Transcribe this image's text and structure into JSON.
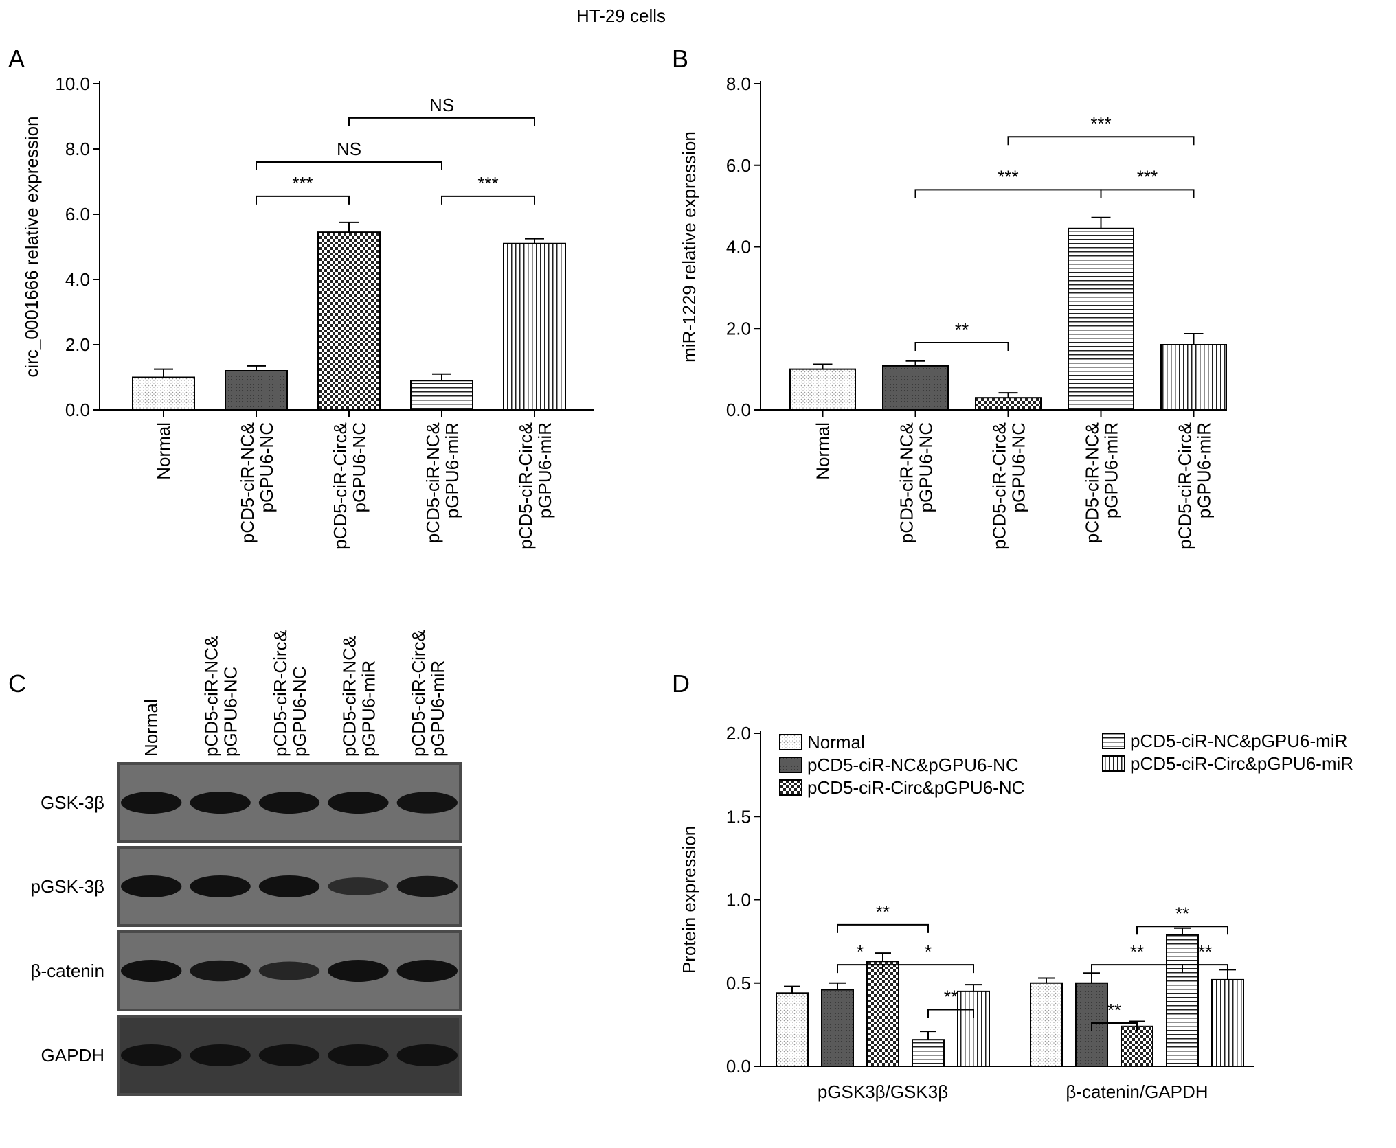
{
  "figure_title": "HT-29 cells",
  "colors": {
    "bar_fill": "#ffffff",
    "dark_fill": "#555555",
    "axis": "#000000",
    "blot_bg": "#f2f2f2",
    "blot_band": "#1a1a1a"
  },
  "patterns": [
    "light-dots",
    "dark-fill",
    "checkerboard",
    "horizontal-lines",
    "vertical-lines"
  ],
  "groups": [
    "Normal",
    "pCD5-ciR-NC& pGPU6-NC",
    "pCD5-ciR-Circ& pGPU6-NC",
    "pCD5-ciR-NC& pGPU6-miR",
    "pCD5-ciR-Circ& pGPU6-miR"
  ],
  "chart_data": [
    {
      "panel": "A",
      "type": "bar",
      "categories": [
        "Normal",
        "pCD5-ciR-NC& pGPU6-NC",
        "pCD5-ciR-Circ& pGPU6-NC",
        "pCD5-ciR-NC& pGPU6-miR",
        "pCD5-ciR-Circ& pGPU6-miR"
      ],
      "values": [
        1.0,
        1.2,
        5.45,
        0.9,
        5.1
      ],
      "errors": [
        0.25,
        0.15,
        0.3,
        0.2,
        0.15
      ],
      "ylabel": "circ_0001666 relative expression",
      "ylim": [
        0,
        10
      ],
      "yticks": [
        "0.0",
        "2.0",
        "4.0",
        "6.0",
        "8.0",
        "10.0"
      ],
      "significance": [
        {
          "from": 1,
          "to": 2,
          "label": "***"
        },
        {
          "from": 3,
          "to": 4,
          "label": "***"
        },
        {
          "from": 1,
          "to": 3,
          "label": "NS"
        },
        {
          "from": 2,
          "to": 4,
          "label": "NS"
        }
      ]
    },
    {
      "panel": "B",
      "type": "bar",
      "categories": [
        "Normal",
        "pCD5-ciR-NC& pGPU6-NC",
        "pCD5-ciR-Circ& pGPU6-NC",
        "pCD5-ciR-NC& pGPU6-miR",
        "pCD5-ciR-Circ& pGPU6-miR"
      ],
      "values": [
        1.0,
        1.08,
        0.3,
        4.45,
        1.6
      ],
      "errors": [
        0.12,
        0.12,
        0.12,
        0.27,
        0.27
      ],
      "ylabel": "miR-1229 relative expression",
      "ylim": [
        0,
        8
      ],
      "yticks": [
        "0.0",
        "2.0",
        "4.0",
        "6.0",
        "8.0"
      ],
      "significance": [
        {
          "from": 1,
          "to": 2,
          "label": "**"
        },
        {
          "from": 1,
          "to": 3,
          "label": "***"
        },
        {
          "from": 3,
          "to": 4,
          "label": "***"
        },
        {
          "from": 2,
          "to": 4,
          "label": "***"
        }
      ]
    },
    {
      "panel": "D",
      "type": "bar",
      "categories": [
        "pGSK3β/GSK3β",
        "β-catenin/GAPDH"
      ],
      "series": [
        {
          "name": "Normal",
          "values": [
            0.44,
            0.5
          ],
          "errors": [
            0.04,
            0.03
          ]
        },
        {
          "name": "pCD5-ciR-NC&pGPU6-NC",
          "values": [
            0.46,
            0.5
          ],
          "errors": [
            0.04,
            0.06
          ]
        },
        {
          "name": "pCD5-ciR-Circ&pGPU6-NC",
          "values": [
            0.63,
            0.24
          ],
          "errors": [
            0.05,
            0.03
          ]
        },
        {
          "name": "pCD5-ciR-NC&pGPU6-miR",
          "values": [
            0.16,
            0.79
          ],
          "errors": [
            0.05,
            0.04
          ]
        },
        {
          "name": "pCD5-ciR-Circ&pGPU6-miR",
          "values": [
            0.45,
            0.52
          ],
          "errors": [
            0.04,
            0.06
          ]
        }
      ],
      "ylabel": "Protein expression",
      "ylim": [
        0,
        2
      ],
      "yticks": [
        "0.0",
        "0.5",
        "1.0",
        "1.5",
        "2.0"
      ],
      "significance": [
        {
          "cat": 0,
          "from": 1,
          "to": 2,
          "label": "*"
        },
        {
          "cat": 0,
          "from": 2,
          "to": 4,
          "label": "*"
        },
        {
          "cat": 0,
          "from": 3,
          "to": 4,
          "label": "**"
        },
        {
          "cat": 0,
          "from": 1,
          "to": 3,
          "label": "**"
        },
        {
          "cat": 1,
          "from": 1,
          "to": 2,
          "label": "**"
        },
        {
          "cat": 1,
          "from": 1,
          "to": 3,
          "label": "**"
        },
        {
          "cat": 1,
          "from": 3,
          "to": 4,
          "label": "**"
        },
        {
          "cat": 1,
          "from": 2,
          "to": 4,
          "label": "**"
        }
      ]
    }
  ],
  "panels": {
    "a": "A",
    "b": "B",
    "c": "C",
    "d": "D"
  },
  "blot": {
    "lanes": [
      "Normal",
      "pCD5-ciR-NC& pGPU6-NC",
      "pCD5-ciR-Circ& pGPU6-NC",
      "pCD5-ciR-NC& pGPU6-miR",
      "pCD5-ciR-Circ& pGPU6-miR"
    ],
    "rows": [
      {
        "label": "GSK-3β",
        "intensity": [
          1.0,
          1.0,
          1.0,
          1.0,
          0.95
        ]
      },
      {
        "label": "pGSK-3β",
        "intensity": [
          1.0,
          1.0,
          1.0,
          0.55,
          0.9
        ]
      },
      {
        "label": "β-catenin",
        "intensity": [
          1.0,
          0.9,
          0.65,
          1.0,
          1.0
        ]
      },
      {
        "label": "GAPDH",
        "intensity": [
          1.0,
          1.0,
          1.0,
          1.0,
          1.0
        ]
      }
    ]
  }
}
